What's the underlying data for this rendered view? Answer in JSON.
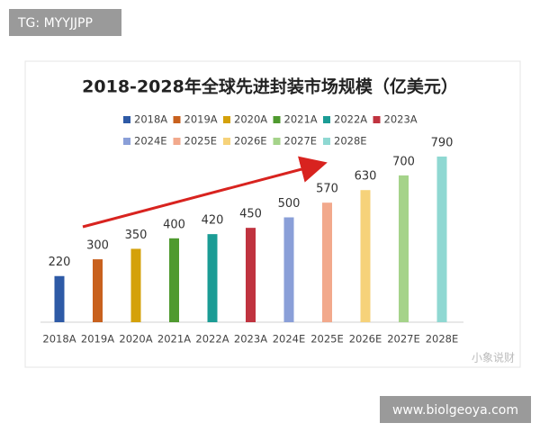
{
  "badge": "TG: MYYJJPP",
  "footer": "www.biolgeoya.com",
  "watermark": "小象说财",
  "chart_data": {
    "type": "bar",
    "title": "2018-2028年全球先进封装市场规模（亿美元）",
    "categories": [
      "2018A",
      "2019A",
      "2020A",
      "2021A",
      "2022A",
      "2023A",
      "2024E",
      "2025E",
      "2026E",
      "2027E",
      "2028E"
    ],
    "values": [
      220,
      300,
      350,
      400,
      420,
      450,
      500,
      570,
      630,
      700,
      790
    ],
    "colors": [
      "#2e5aa6",
      "#c8611e",
      "#d4a10a",
      "#4f9a2f",
      "#1b9c95",
      "#c0333f",
      "#8a9fd8",
      "#f2a98c",
      "#f6d27a",
      "#a5d38a",
      "#8fd8d2"
    ],
    "legend": true
  }
}
